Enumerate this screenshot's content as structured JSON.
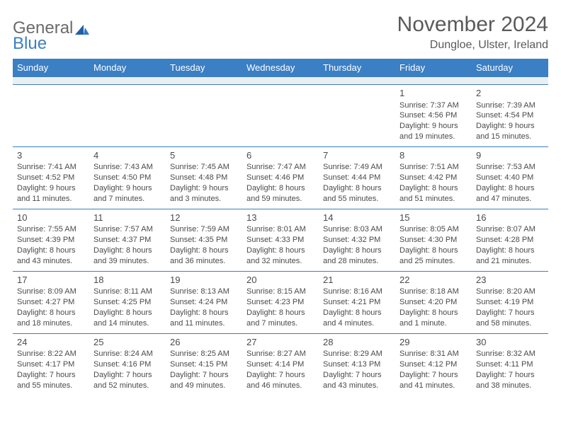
{
  "logo": {
    "text1": "General",
    "text2": "Blue"
  },
  "title": "November 2024",
  "location": "Dungloe, Ulster, Ireland",
  "colors": {
    "header_bg": "#3b7fc4",
    "header_text": "#ffffff",
    "rule": "#3b7fc4",
    "body_text": "#4a4a4a",
    "blank_row_bg": "#eceff1",
    "logo_gray": "#6b6b6b",
    "logo_blue": "#3b7fc4",
    "page_bg": "#ffffff"
  },
  "typography": {
    "title_fontsize": 30,
    "location_fontsize": 16,
    "weekday_fontsize": 13,
    "daynum_fontsize": 13,
    "body_fontsize": 11
  },
  "weekdays": [
    "Sunday",
    "Monday",
    "Tuesday",
    "Wednesday",
    "Thursday",
    "Friday",
    "Saturday"
  ],
  "weeks": [
    [
      null,
      null,
      null,
      null,
      null,
      {
        "n": "1",
        "sr": "Sunrise: 7:37 AM",
        "ss": "Sunset: 4:56 PM",
        "dl": "Daylight: 9 hours and 19 minutes."
      },
      {
        "n": "2",
        "sr": "Sunrise: 7:39 AM",
        "ss": "Sunset: 4:54 PM",
        "dl": "Daylight: 9 hours and 15 minutes."
      }
    ],
    [
      {
        "n": "3",
        "sr": "Sunrise: 7:41 AM",
        "ss": "Sunset: 4:52 PM",
        "dl": "Daylight: 9 hours and 11 minutes."
      },
      {
        "n": "4",
        "sr": "Sunrise: 7:43 AM",
        "ss": "Sunset: 4:50 PM",
        "dl": "Daylight: 9 hours and 7 minutes."
      },
      {
        "n": "5",
        "sr": "Sunrise: 7:45 AM",
        "ss": "Sunset: 4:48 PM",
        "dl": "Daylight: 9 hours and 3 minutes."
      },
      {
        "n": "6",
        "sr": "Sunrise: 7:47 AM",
        "ss": "Sunset: 4:46 PM",
        "dl": "Daylight: 8 hours and 59 minutes."
      },
      {
        "n": "7",
        "sr": "Sunrise: 7:49 AM",
        "ss": "Sunset: 4:44 PM",
        "dl": "Daylight: 8 hours and 55 minutes."
      },
      {
        "n": "8",
        "sr": "Sunrise: 7:51 AM",
        "ss": "Sunset: 4:42 PM",
        "dl": "Daylight: 8 hours and 51 minutes."
      },
      {
        "n": "9",
        "sr": "Sunrise: 7:53 AM",
        "ss": "Sunset: 4:40 PM",
        "dl": "Daylight: 8 hours and 47 minutes."
      }
    ],
    [
      {
        "n": "10",
        "sr": "Sunrise: 7:55 AM",
        "ss": "Sunset: 4:39 PM",
        "dl": "Daylight: 8 hours and 43 minutes."
      },
      {
        "n": "11",
        "sr": "Sunrise: 7:57 AM",
        "ss": "Sunset: 4:37 PM",
        "dl": "Daylight: 8 hours and 39 minutes."
      },
      {
        "n": "12",
        "sr": "Sunrise: 7:59 AM",
        "ss": "Sunset: 4:35 PM",
        "dl": "Daylight: 8 hours and 36 minutes."
      },
      {
        "n": "13",
        "sr": "Sunrise: 8:01 AM",
        "ss": "Sunset: 4:33 PM",
        "dl": "Daylight: 8 hours and 32 minutes."
      },
      {
        "n": "14",
        "sr": "Sunrise: 8:03 AM",
        "ss": "Sunset: 4:32 PM",
        "dl": "Daylight: 8 hours and 28 minutes."
      },
      {
        "n": "15",
        "sr": "Sunrise: 8:05 AM",
        "ss": "Sunset: 4:30 PM",
        "dl": "Daylight: 8 hours and 25 minutes."
      },
      {
        "n": "16",
        "sr": "Sunrise: 8:07 AM",
        "ss": "Sunset: 4:28 PM",
        "dl": "Daylight: 8 hours and 21 minutes."
      }
    ],
    [
      {
        "n": "17",
        "sr": "Sunrise: 8:09 AM",
        "ss": "Sunset: 4:27 PM",
        "dl": "Daylight: 8 hours and 18 minutes."
      },
      {
        "n": "18",
        "sr": "Sunrise: 8:11 AM",
        "ss": "Sunset: 4:25 PM",
        "dl": "Daylight: 8 hours and 14 minutes."
      },
      {
        "n": "19",
        "sr": "Sunrise: 8:13 AM",
        "ss": "Sunset: 4:24 PM",
        "dl": "Daylight: 8 hours and 11 minutes."
      },
      {
        "n": "20",
        "sr": "Sunrise: 8:15 AM",
        "ss": "Sunset: 4:23 PM",
        "dl": "Daylight: 8 hours and 7 minutes."
      },
      {
        "n": "21",
        "sr": "Sunrise: 8:16 AM",
        "ss": "Sunset: 4:21 PM",
        "dl": "Daylight: 8 hours and 4 minutes."
      },
      {
        "n": "22",
        "sr": "Sunrise: 8:18 AM",
        "ss": "Sunset: 4:20 PM",
        "dl": "Daylight: 8 hours and 1 minute."
      },
      {
        "n": "23",
        "sr": "Sunrise: 8:20 AM",
        "ss": "Sunset: 4:19 PM",
        "dl": "Daylight: 7 hours and 58 minutes."
      }
    ],
    [
      {
        "n": "24",
        "sr": "Sunrise: 8:22 AM",
        "ss": "Sunset: 4:17 PM",
        "dl": "Daylight: 7 hours and 55 minutes."
      },
      {
        "n": "25",
        "sr": "Sunrise: 8:24 AM",
        "ss": "Sunset: 4:16 PM",
        "dl": "Daylight: 7 hours and 52 minutes."
      },
      {
        "n": "26",
        "sr": "Sunrise: 8:25 AM",
        "ss": "Sunset: 4:15 PM",
        "dl": "Daylight: 7 hours and 49 minutes."
      },
      {
        "n": "27",
        "sr": "Sunrise: 8:27 AM",
        "ss": "Sunset: 4:14 PM",
        "dl": "Daylight: 7 hours and 46 minutes."
      },
      {
        "n": "28",
        "sr": "Sunrise: 8:29 AM",
        "ss": "Sunset: 4:13 PM",
        "dl": "Daylight: 7 hours and 43 minutes."
      },
      {
        "n": "29",
        "sr": "Sunrise: 8:31 AM",
        "ss": "Sunset: 4:12 PM",
        "dl": "Daylight: 7 hours and 41 minutes."
      },
      {
        "n": "30",
        "sr": "Sunrise: 8:32 AM",
        "ss": "Sunset: 4:11 PM",
        "dl": "Daylight: 7 hours and 38 minutes."
      }
    ]
  ]
}
